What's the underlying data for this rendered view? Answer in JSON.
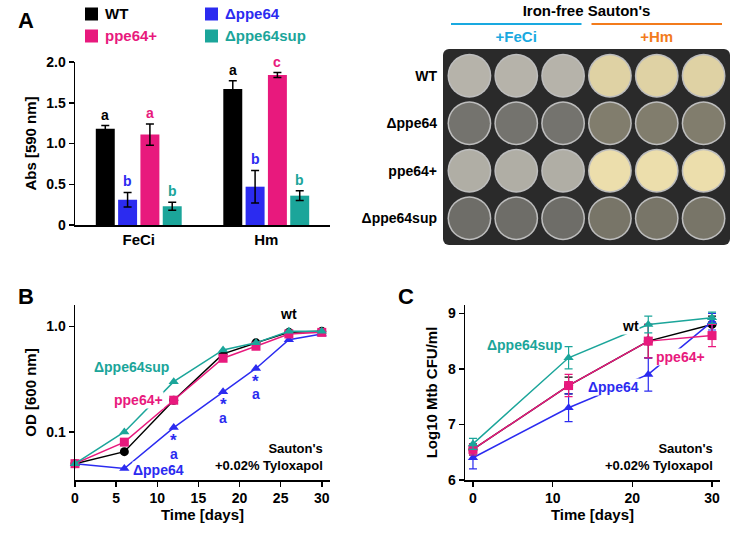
{
  "chart_data": [
    {
      "panel": "A",
      "type": "bar",
      "y_label": "Abs [590 nm]",
      "categories": [
        "FeCi",
        "Hm"
      ],
      "ylim": [
        0,
        2
      ],
      "yticks": [
        0,
        0.5,
        {
          "value": 1,
          "label": "1.0"
        },
        1.5,
        {
          "value": 2,
          "label": "2.0"
        }
      ],
      "legend": "top",
      "series": [
        {
          "name": "WT",
          "color": "#000000",
          "values": [
            1.18,
            1.67
          ],
          "errors": [
            0.04,
            0.1
          ],
          "letters": [
            "a",
            "a"
          ]
        },
        {
          "name": "Δppe64",
          "color": "#2b2bf0",
          "values": [
            0.31,
            0.47
          ],
          "errors": [
            0.09,
            0.2
          ],
          "letters": [
            "b",
            "b"
          ]
        },
        {
          "name": "ppe64+",
          "color": "#e8197d",
          "values": [
            1.11,
            1.84
          ],
          "errors": [
            0.13,
            0.03
          ],
          "letters": [
            "a",
            "c"
          ]
        },
        {
          "name": "Δppe64sup",
          "color": "#1ba59a",
          "values": [
            0.23,
            0.36
          ],
          "errors": [
            0.05,
            0.06
          ],
          "letters": [
            "b",
            "b"
          ]
        }
      ]
    },
    {
      "panel": "B",
      "type": "line",
      "x_label": "Time [days]",
      "y_label": "OD [600 nm]",
      "log": "y",
      "x": [
        0,
        6,
        12,
        18,
        22,
        26,
        30
      ],
      "xlim": [
        0,
        31
      ],
      "xticks": [
        0,
        5,
        10,
        15,
        20,
        25,
        30
      ],
      "ylim": [
        0.035,
        1.6
      ],
      "yticks": [
        0.1,
        {
          "value": 1,
          "label": "1.0"
        }
      ],
      "annotation": [
        "Sauton's",
        "+0.02% Tyloxapol"
      ],
      "series": [
        {
          "name": "wt",
          "color": "#000000",
          "marker": "circle",
          "values": [
            0.05,
            0.065,
            0.2,
            0.55,
            0.7,
            0.88,
            0.9
          ]
        },
        {
          "name": "Δppe64",
          "color": "#2b2bf0",
          "marker": "triangle-up",
          "values": [
            0.05,
            0.045,
            0.11,
            0.24,
            0.4,
            0.75,
            0.85
          ],
          "stars": [
            null,
            null,
            "*",
            "*",
            "*",
            null,
            null
          ],
          "letters": [
            null,
            null,
            "a",
            "a",
            "a",
            null,
            null
          ]
        },
        {
          "name": "ppe64+",
          "color": "#e8197d",
          "marker": "square",
          "values": [
            0.05,
            0.08,
            0.2,
            0.5,
            0.65,
            0.85,
            0.88
          ]
        },
        {
          "name": "Δppe64sup",
          "color": "#1ba59a",
          "marker": "triangle-up",
          "values": [
            0.05,
            0.1,
            0.3,
            0.6,
            0.7,
            0.9,
            0.9
          ]
        }
      ]
    },
    {
      "panel": "C",
      "type": "line",
      "x_label": "Time [days]",
      "y_label": "Log10 Mtb CFU/ml",
      "x": [
        0,
        12,
        22,
        30
      ],
      "xlim": [
        -1,
        31
      ],
      "xticks": [
        0,
        10,
        20,
        30
      ],
      "ylim": [
        6,
        9.15
      ],
      "yticks": [
        6,
        7,
        8,
        9
      ],
      "annotation": [
        "Sauton's",
        "+0.02% Tyloxapol"
      ],
      "series": [
        {
          "name": "wt",
          "color": "#000000",
          "marker": "circle",
          "values": [
            6.55,
            7.7,
            8.5,
            8.8
          ],
          "errors": [
            0.1,
            0.15,
            0.3,
            0.15
          ]
        },
        {
          "name": "Δppe64",
          "color": "#2b2bf0",
          "marker": "triangle-up",
          "values": [
            6.4,
            7.3,
            7.9,
            8.85
          ],
          "errors": [
            0.2,
            0.25,
            0.3,
            0.15
          ]
        },
        {
          "name": "ppe64+",
          "color": "#e8197d",
          "marker": "square",
          "values": [
            6.55,
            7.7,
            8.5,
            8.6
          ],
          "errors": [
            0.1,
            0.2,
            0.3,
            0.2
          ]
        },
        {
          "name": "Δppe64sup",
          "color": "#1ba59a",
          "marker": "triangle-up",
          "values": [
            6.65,
            8.2,
            8.8,
            8.92
          ],
          "errors": [
            0.1,
            0.2,
            0.15,
            0.1
          ]
        }
      ]
    }
  ],
  "image": {
    "title": "Iron-free Sauton's",
    "groups": [
      {
        "label": "+FeCi",
        "color": "#19a9e0"
      },
      {
        "label": "+Hm",
        "color": "#f27b1c"
      }
    ],
    "rows": [
      "WT",
      "Δppe64",
      "ppe64+",
      "Δppe64sup"
    ]
  }
}
